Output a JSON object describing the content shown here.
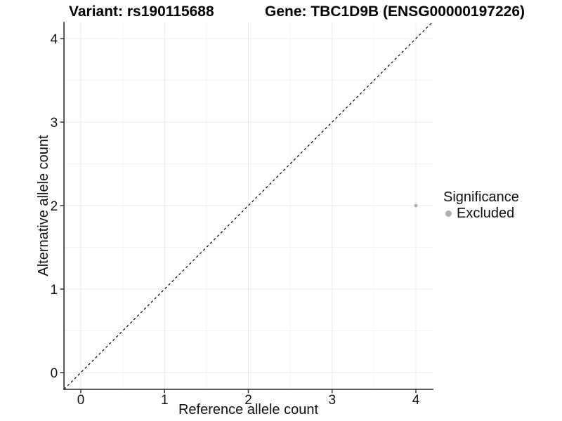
{
  "chart_data": {
    "type": "scatter",
    "title_left": "Variant: rs190115688",
    "title_right": "Gene: TBC1D9B (ENSG00000197226)",
    "xlabel": "Reference allele count",
    "ylabel": "Alternative allele count",
    "xlim": [
      -0.2,
      4.2
    ],
    "ylim": [
      -0.2,
      4.2
    ],
    "x_ticks": [
      0,
      1,
      2,
      3,
      4
    ],
    "y_ticks": [
      0,
      1,
      2,
      3,
      4
    ],
    "grid": "major+minor",
    "reference_line": {
      "type": "identity",
      "style": "dashed",
      "color": "#000000"
    },
    "series": [
      {
        "name": "Excluded",
        "color": "#adadad",
        "points": [
          {
            "x": 4,
            "y": 2
          }
        ]
      }
    ],
    "legend": {
      "title": "Significance",
      "position": "right",
      "items": [
        {
          "label": "Excluded",
          "color": "#adadad"
        }
      ]
    },
    "colors": {
      "background": "#ffffff",
      "grid_major": "#e9e9e9",
      "grid_minor": "#f5f5f5",
      "axis_line": "#404040",
      "tick_mark": "#333333",
      "point": "#adadad"
    }
  }
}
